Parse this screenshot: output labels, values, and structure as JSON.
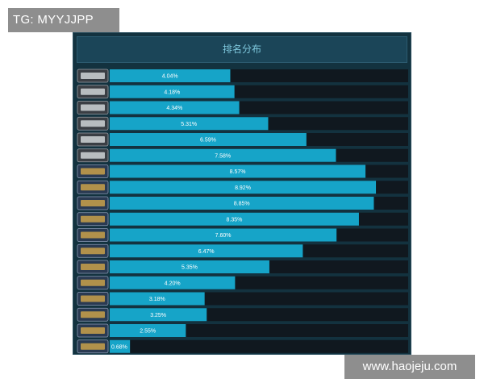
{
  "watermarks": {
    "top_left": "TG: MYYJJPP",
    "bottom_right": "www.haojeju.com"
  },
  "panel": {
    "title": "排名分布"
  },
  "colors": {
    "bar_fill": "#16a4c8",
    "bar_track": "#10181f",
    "panel_bg": "#13323f",
    "header_bg": "#1b4558",
    "title_text": "#7fc8dd"
  },
  "chart_data": {
    "type": "bar",
    "orientation": "horizontal",
    "title": "排名分布",
    "categories": [
      "silver-1-badge",
      "silver-2-badge",
      "silver-3-badge",
      "silver-4-badge",
      "silver-elite-badge",
      "silver-elite-master-badge",
      "gold-nova-1-badge",
      "gold-nova-2-badge",
      "gold-nova-3-badge",
      "gold-nova-master-badge",
      "master-guardian-1-badge",
      "master-guardian-2-badge",
      "master-guardian-elite-badge",
      "distinguished-master-guardian-badge",
      "legendary-eagle-badge",
      "legendary-eagle-master-badge",
      "supreme-master-first-class-badge",
      "global-elite-badge"
    ],
    "values": [
      4.04,
      4.18,
      4.34,
      5.31,
      6.59,
      7.58,
      8.57,
      8.92,
      8.85,
      8.35,
      7.6,
      6.47,
      5.35,
      4.2,
      3.18,
      3.25,
      2.55,
      0.68
    ],
    "labels": [
      "4.04%",
      "4.18%",
      "4.34%",
      "5.31%",
      "6.59%",
      "7.58%",
      "8.57%",
      "8.92%",
      "8.85%",
      "8.35%",
      "7.60%",
      "6.47%",
      "5.35%",
      "4.20%",
      "3.18%",
      "3.25%",
      "2.55%",
      "0.68%"
    ],
    "xlim": [
      0,
      10
    ],
    "unit": "%",
    "grid": false,
    "legend": "none"
  }
}
